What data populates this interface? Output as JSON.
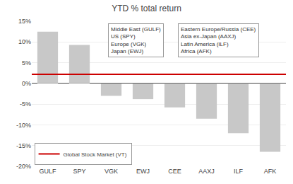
{
  "chart_data": {
    "type": "bar",
    "title": "YTD % total return",
    "categories": [
      "GULF",
      "SPY",
      "VGK",
      "EWJ",
      "CEE",
      "AAXJ",
      "ILF",
      "AFK"
    ],
    "values": [
      12.5,
      9.3,
      -3.0,
      -3.8,
      -5.8,
      -8.5,
      -12.0,
      -16.5
    ],
    "color": "#c8c8c8",
    "ylim": [
      -20,
      15
    ],
    "yticks": [
      {
        "value": -20,
        "label": "-20%"
      },
      {
        "value": -15,
        "label": "-15%"
      },
      {
        "value": -10,
        "label": "-10%"
      },
      {
        "value": -5,
        "label": "-5%"
      },
      {
        "value": 0,
        "label": "0%"
      },
      {
        "value": 5,
        "label": "5%"
      },
      {
        "value": 10,
        "label": "10%"
      },
      {
        "value": 15,
        "label": "15%"
      }
    ],
    "grid": true,
    "reference_line": {
      "value": 2.2,
      "label": "Global Stock Market (VT)",
      "color": "#cc0000"
    },
    "legend": "lower left",
    "annotations": [
      [
        "Middle East (GULF)",
        "US (SPY)",
        "Europe (VGK)",
        "Japan (EWJ)"
      ],
      [
        "Eastern Europe/Russia (CEE)",
        "Asia ex-Japan (AAXJ)",
        "Latin America (ILF)",
        "Africa (AFK)"
      ]
    ]
  }
}
